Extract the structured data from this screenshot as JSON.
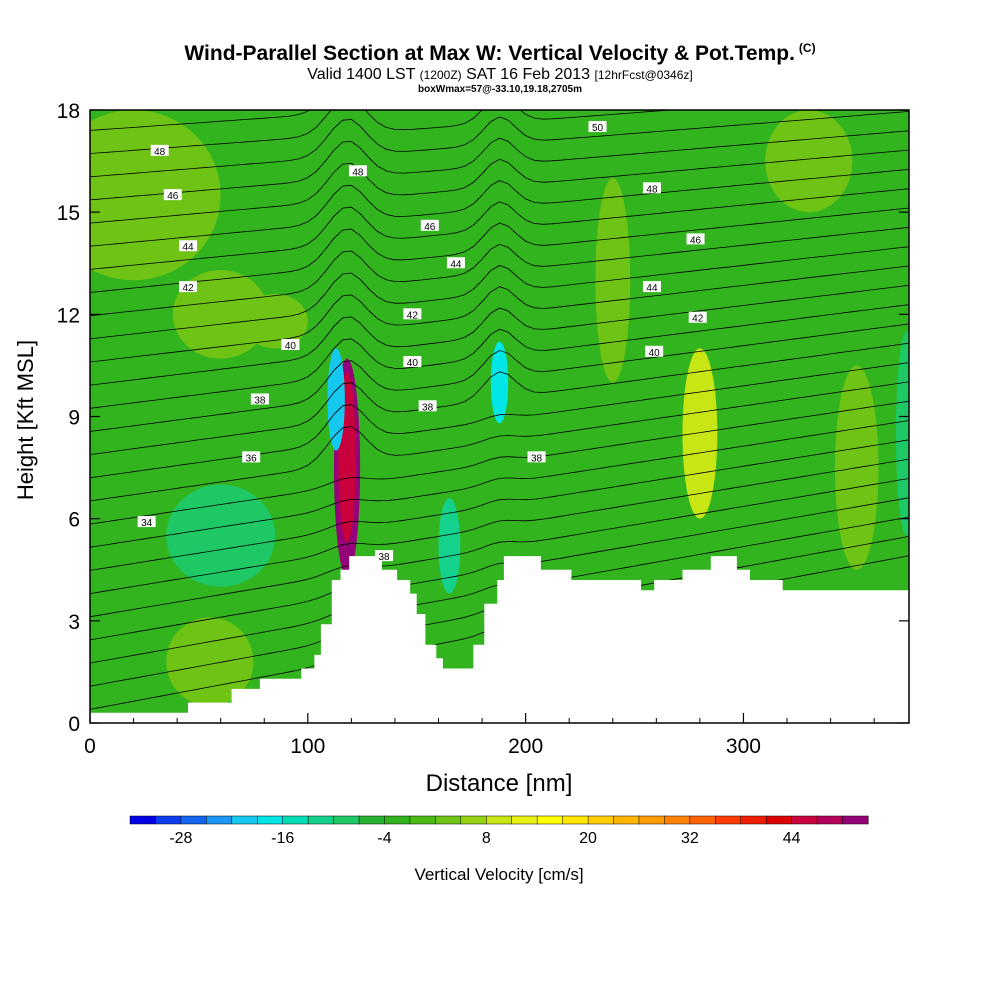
{
  "title": {
    "main": "Wind-Parallel Section at Max W: Vertical Velocity & Pot.Temp.",
    "copyright": "(C)",
    "valid_prefix": "Valid 1400 LST",
    "valid_utc": "(1200Z)",
    "valid_date": "SAT 16 Feb 2013",
    "forecast": "[12hrFcst@0346z]",
    "box_info": "boxWmax=57@-33.10,19.18,2705m"
  },
  "chart_data": {
    "type": "contour",
    "xlabel": "Distance [nm]",
    "ylabel": "Height [Kft MSL]",
    "xlim": [
      0,
      376
    ],
    "ylim": [
      0,
      18
    ],
    "x_ticks": [
      0,
      100,
      200,
      300
    ],
    "y_ticks": [
      0,
      3,
      6,
      9,
      12,
      15,
      18
    ],
    "colorbar": {
      "label": "Vertical Velocity [cm/s]",
      "tick_labels": [
        "-28",
        "-16",
        "-4",
        "8",
        "20",
        "32",
        "44"
      ],
      "levels": [
        -34,
        -31,
        -28,
        -25,
        -22,
        -19,
        -16,
        -13,
        -10,
        -7,
        -4,
        -1,
        2,
        5,
        8,
        11,
        14,
        17,
        20,
        23,
        26,
        29,
        32,
        35,
        38,
        41,
        44,
        47,
        50,
        53
      ],
      "colors": [
        "#0000e6",
        "#0a3cf0",
        "#1464f0",
        "#1e96f5",
        "#14c8f0",
        "#00e6e6",
        "#00dcb4",
        "#14d28c",
        "#1ec864",
        "#28b432",
        "#32b41e",
        "#4bb914",
        "#6ec314",
        "#96d214",
        "#c8e614",
        "#e6f014",
        "#ffff00",
        "#ffe600",
        "#ffcd00",
        "#ffb400",
        "#ff9b00",
        "#ff8200",
        "#ff6400",
        "#ff3c00",
        "#f01e00",
        "#dc0000",
        "#c8003c",
        "#b4005a",
        "#960078"
      ]
    },
    "terrain": [
      [
        0,
        0.3
      ],
      [
        22,
        0.3
      ],
      [
        22,
        0.3
      ],
      [
        45,
        0.3
      ],
      [
        45,
        0.6
      ],
      [
        65,
        0.6
      ],
      [
        65,
        1.0
      ],
      [
        78,
        1.0
      ],
      [
        78,
        1.3
      ],
      [
        97,
        1.3
      ],
      [
        97,
        1.6
      ],
      [
        103,
        1.6
      ],
      [
        103,
        2.0
      ],
      [
        106,
        2.0
      ],
      [
        106,
        2.9
      ],
      [
        111,
        2.9
      ],
      [
        111,
        4.2
      ],
      [
        115,
        4.2
      ],
      [
        115,
        4.5
      ],
      [
        119,
        4.5
      ],
      [
        119,
        4.9
      ],
      [
        134,
        4.9
      ],
      [
        134,
        4.5
      ],
      [
        141,
        4.5
      ],
      [
        141,
        4.2
      ],
      [
        147,
        4.2
      ],
      [
        147,
        3.8
      ],
      [
        150,
        3.8
      ],
      [
        150,
        3.2
      ],
      [
        154,
        3.2
      ],
      [
        154,
        2.3
      ],
      [
        159,
        2.3
      ],
      [
        159,
        1.9
      ],
      [
        162,
        1.9
      ],
      [
        162,
        1.6
      ],
      [
        176,
        1.6
      ],
      [
        176,
        2.3
      ],
      [
        181,
        2.3
      ],
      [
        181,
        3.5
      ],
      [
        187,
        3.5
      ],
      [
        187,
        4.2
      ],
      [
        190,
        4.2
      ],
      [
        190,
        4.9
      ],
      [
        207,
        4.9
      ],
      [
        207,
        4.5
      ],
      [
        221,
        4.5
      ],
      [
        221,
        4.2
      ],
      [
        253,
        4.2
      ],
      [
        253,
        3.9
      ],
      [
        259,
        3.9
      ],
      [
        259,
        4.2
      ],
      [
        272,
        4.2
      ],
      [
        272,
        4.5
      ],
      [
        285,
        4.5
      ],
      [
        285,
        4.9
      ],
      [
        297,
        4.9
      ],
      [
        297,
        4.5
      ],
      [
        303,
        4.5
      ],
      [
        303,
        4.2
      ],
      [
        318,
        4.2
      ],
      [
        318,
        3.9
      ],
      [
        376,
        3.9
      ]
    ],
    "velocity_features": [
      {
        "x": 118,
        "y": 7.5,
        "rx": 6,
        "ry": 3.2,
        "value": 50
      },
      {
        "x": 118,
        "y": 7.8,
        "rx": 4,
        "ry": 2.5,
        "value": 44
      },
      {
        "x": 113,
        "y": 9.5,
        "rx": 4,
        "ry": 1.5,
        "value": -22
      },
      {
        "x": 188,
        "y": 10.0,
        "rx": 4,
        "ry": 1.2,
        "value": -19
      },
      {
        "x": 165,
        "y": 5.2,
        "rx": 5,
        "ry": 1.4,
        "value": -13
      },
      {
        "x": 280,
        "y": 8.5,
        "rx": 8,
        "ry": 2.5,
        "value": 8
      },
      {
        "x": 60,
        "y": 5.5,
        "rx": 25,
        "ry": 1.5,
        "value": -10
      }
    ],
    "theta_labels": [
      {
        "text": "48",
        "x": 32,
        "y": 16.8
      },
      {
        "text": "46",
        "x": 38,
        "y": 15.5
      },
      {
        "text": "44",
        "x": 45,
        "y": 14.0
      },
      {
        "text": "42",
        "x": 45,
        "y": 12.8
      },
      {
        "text": "40",
        "x": 92,
        "y": 11.1
      },
      {
        "text": "38",
        "x": 78,
        "y": 9.5
      },
      {
        "text": "36",
        "x": 74,
        "y": 7.8
      },
      {
        "text": "34",
        "x": 26,
        "y": 5.9
      },
      {
        "text": "48",
        "x": 123,
        "y": 16.2
      },
      {
        "text": "46",
        "x": 156,
        "y": 14.6
      },
      {
        "text": "44",
        "x": 168,
        "y": 13.5
      },
      {
        "text": "42",
        "x": 148,
        "y": 12.0
      },
      {
        "text": "40",
        "x": 148,
        "y": 10.6
      },
      {
        "text": "38",
        "x": 155,
        "y": 9.3
      },
      {
        "text": "38",
        "x": 135,
        "y": 4.9
      },
      {
        "text": "38",
        "x": 205,
        "y": 7.8
      },
      {
        "text": "50",
        "x": 233,
        "y": 17.5
      },
      {
        "text": "48",
        "x": 258,
        "y": 15.7
      },
      {
        "text": "46",
        "x": 278,
        "y": 14.2
      },
      {
        "text": "44",
        "x": 258,
        "y": 12.8
      },
      {
        "text": "42",
        "x": 279,
        "y": 11.9
      },
      {
        "text": "40",
        "x": 259,
        "y": 10.9
      }
    ]
  }
}
